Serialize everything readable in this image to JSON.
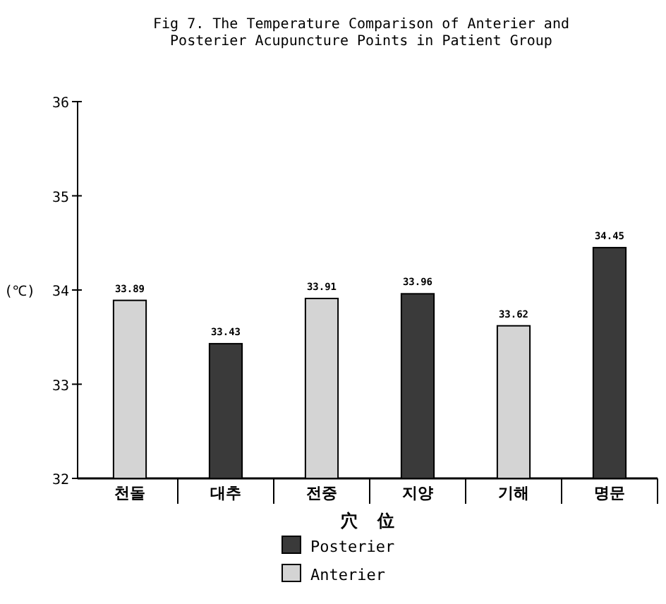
{
  "chart_data": {
    "type": "bar",
    "title": "Fig 7. The Temperature Comparison of Anterier and\nPosterier Acupuncture Points in Patient Group",
    "categories": [
      "천돌",
      "대추",
      "전중",
      "지양",
      "기해",
      "명문"
    ],
    "xlabel": "穴  位",
    "ylabel": "(℃)",
    "series": [
      {
        "name": "Posterier",
        "color": "#3a3a3a",
        "values": [
          null,
          33.43,
          null,
          33.96,
          null,
          34.45
        ]
      },
      {
        "name": "Anterier",
        "color": "#d4d4d4",
        "values": [
          33.89,
          null,
          33.91,
          null,
          33.62,
          null
        ]
      }
    ],
    "ylim": [
      32,
      36
    ],
    "yticks": [
      32,
      33,
      34,
      35,
      36
    ],
    "data_labels": true,
    "legend": "bottom",
    "grid": false
  }
}
